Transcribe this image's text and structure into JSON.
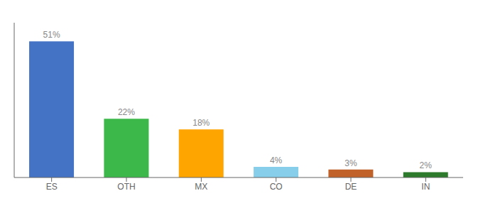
{
  "chart_data": {
    "type": "bar",
    "categories": [
      "ES",
      "OTH",
      "MX",
      "CO",
      "DE",
      "IN"
    ],
    "values": [
      51,
      22,
      18,
      4,
      3,
      2
    ],
    "value_labels": [
      "51%",
      "22%",
      "18%",
      "4%",
      "3%",
      "2%"
    ],
    "colors": [
      "#4472C4",
      "#3CB84A",
      "#FFA500",
      "#87CEEB",
      "#C0622A",
      "#2D7A2D"
    ],
    "ylim": [
      0,
      58
    ],
    "data_labels": true,
    "tick_labels": "x",
    "grid": false
  }
}
